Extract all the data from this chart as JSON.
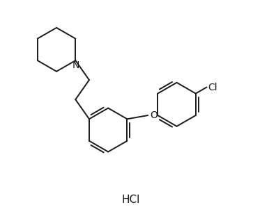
{
  "background_color": "#ffffff",
  "line_color": "#1a1a1a",
  "line_width": 1.4,
  "font_size_atom": 9,
  "font_size_hcl": 11,
  "hcl_label": "HCl",
  "cl_label": "Cl",
  "n_label": "N",
  "o_label": "O",
  "figsize": [
    3.96,
    3.08
  ],
  "dpi": 100,
  "xlim": [
    0,
    9.5
  ],
  "ylim": [
    0,
    7.5
  ]
}
